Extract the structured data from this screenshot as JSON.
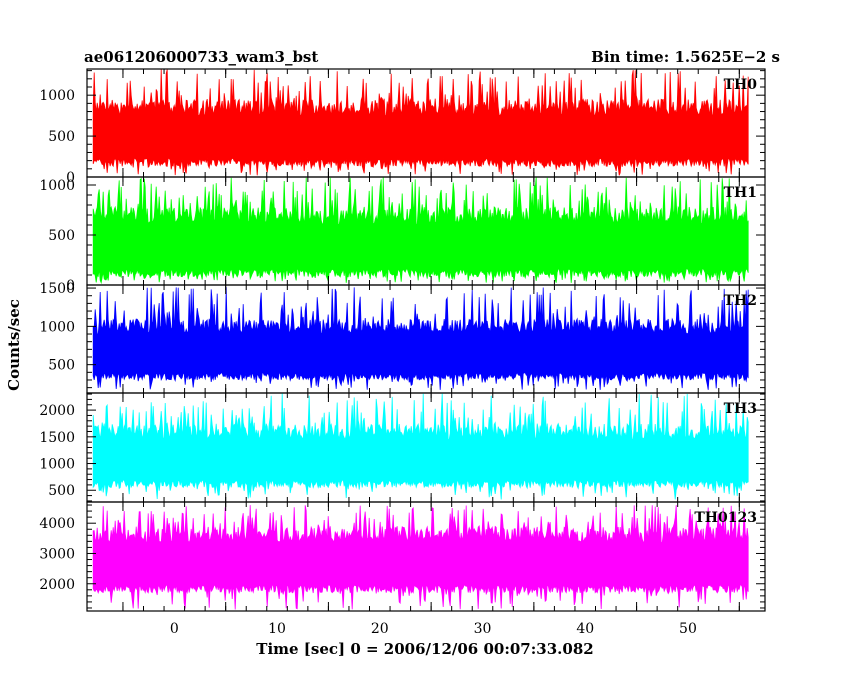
{
  "chart_data": {
    "type": "line",
    "title": "ae061206000733_wam3_bst",
    "bin_time": "Bin time: 1.5625E−2 s",
    "xlabel": "Time [sec] 0 = 2006/12/06 00:07:33.082",
    "ylabel": "Counts/sec",
    "xlim": [
      -8.5,
      57.5
    ],
    "x_data_range": [
      -7.9,
      55.9
    ],
    "x_ticks": [
      "0",
      "10",
      "20",
      "30",
      "40",
      "50"
    ],
    "x_tick_values": [
      0,
      10,
      20,
      30,
      40,
      50
    ],
    "series": [
      {
        "name": "TH0",
        "color": "#ff0000",
        "ylim": [
          0,
          1320
        ],
        "ticks": [
          "0",
          "500",
          "1000"
        ],
        "tick_values": [
          0,
          500,
          1000
        ],
        "typical_range": [
          130,
          950
        ],
        "extreme_range": [
          20,
          1320
        ]
      },
      {
        "name": "TH1",
        "color": "#00ff00",
        "ylim": [
          0,
          1080
        ],
        "ticks": [
          "0",
          "500",
          "1000"
        ],
        "tick_values": [
          0,
          500,
          1000
        ],
        "typical_range": [
          80,
          780
        ],
        "extreme_range": [
          20,
          1080
        ]
      },
      {
        "name": "TH2",
        "color": "#0000ff",
        "ylim": [
          130,
          1540
        ],
        "ticks": [
          "500",
          "1000",
          "1500"
        ],
        "tick_values": [
          500,
          1000,
          1500
        ],
        "typical_range": [
          300,
          1100
        ],
        "extreme_range": [
          170,
          1520
        ]
      },
      {
        "name": "TH3",
        "color": "#00ffff",
        "ylim": [
          280,
          2320
        ],
        "ticks": [
          "500",
          "1000",
          "1500",
          "2000"
        ],
        "tick_values": [
          500,
          1000,
          1500,
          2000
        ],
        "typical_range": [
          550,
          1750
        ],
        "extreme_range": [
          320,
          2320
        ]
      },
      {
        "name": "TH0123",
        "color": "#ff00ff",
        "ylim": [
          1100,
          4700
        ],
        "ticks": [
          "2000",
          "3000",
          "4000"
        ],
        "tick_values": [
          2000,
          3000,
          4000
        ],
        "typical_range": [
          1700,
          3900
        ],
        "extreme_range": [
          1150,
          4600
        ]
      }
    ]
  }
}
